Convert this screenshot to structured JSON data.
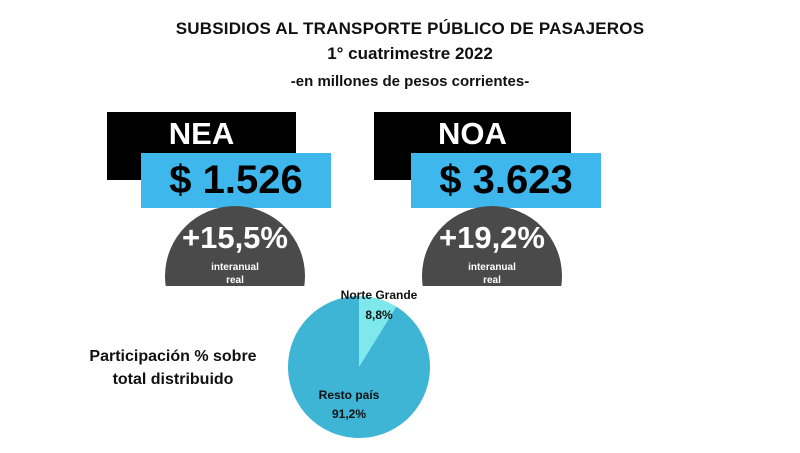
{
  "header": {
    "title": "SUBSIDIOS AL TRANSPORTE PÚBLICO DE PASAJEROS",
    "subtitle": "1° cuatrimestre 2022",
    "unit": "-en millones de pesos corrientes-"
  },
  "cards": [
    {
      "region": "NEA",
      "amount": "$ 1.526",
      "change": "+15,5%",
      "change_note_1": "interanual",
      "change_note_2": "real"
    },
    {
      "region": "NOA",
      "amount": "$ 3.623",
      "change": "+19,2%",
      "change_note_1": "interanual",
      "change_note_2": "real"
    }
  ],
  "participation_label": "Participación % sobre total distribuido",
  "colors": {
    "region_box": "#000000",
    "amount_box": "#3db7ec",
    "change_circle": "#4a4a4a",
    "pie_main": "#3fb5d6",
    "pie_small": "#7ee8ec"
  },
  "chart_data": {
    "type": "pie",
    "slices": [
      {
        "label": "Norte Grande",
        "value": 8.8,
        "value_label": "8,8%"
      },
      {
        "label": "Resto país",
        "value": 91.2,
        "value_label": "91,2%"
      }
    ]
  }
}
